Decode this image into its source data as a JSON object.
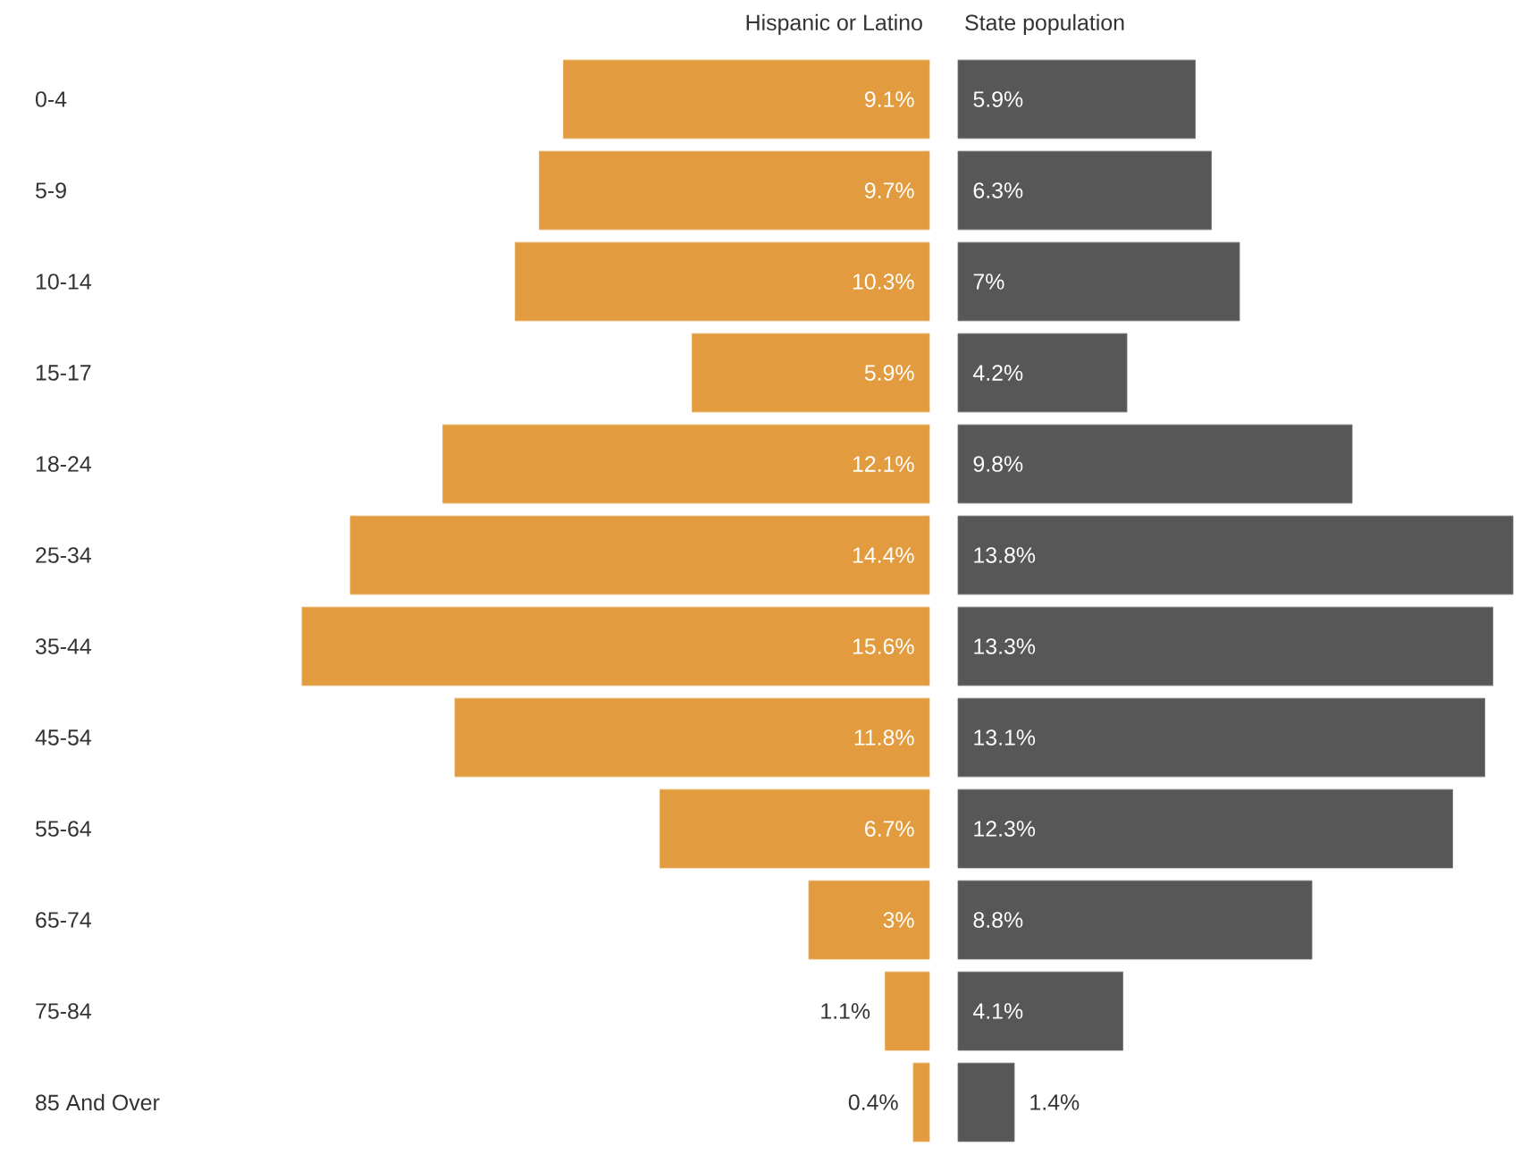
{
  "chart_data": [
    {
      "type": "bar",
      "orientation": "horizontal",
      "title": "Hispanic or Latino",
      "categories": [
        "0-4",
        "5-9",
        "10-14",
        "15-17",
        "18-24",
        "25-34",
        "35-44",
        "45-54",
        "55-64",
        "65-74",
        "75-84",
        "85 And Over"
      ],
      "values": [
        9.1,
        9.7,
        10.3,
        5.9,
        12.1,
        14.4,
        15.6,
        11.8,
        6.7,
        3,
        1.1,
        0.4
      ],
      "color": "#e29c3f",
      "value_labels": [
        "9.1%",
        "9.7%",
        "10.3%",
        "5.9%",
        "12.1%",
        "14.4%",
        "15.6%",
        "11.8%",
        "6.7%",
        "3%",
        "1.1%",
        "0.4%"
      ],
      "tick_labels": "y"
    },
    {
      "type": "bar",
      "orientation": "horizontal",
      "title": "State population",
      "categories": [
        null,
        null,
        null,
        null,
        null,
        null,
        null,
        null,
        null,
        null,
        null,
        null
      ],
      "values": [
        5.9,
        6.3,
        7,
        4.2,
        9.8,
        13.8,
        13.3,
        13.1,
        12.3,
        8.8,
        4.1,
        1.4
      ],
      "color": "#575757",
      "value_labels": [
        "5.9%",
        "6.3%",
        "7%",
        "4.2%",
        "9.8%",
        "13.8%",
        "13.3%",
        "13.1%",
        "12.3%",
        "8.8%",
        "4.1%",
        "1.4%"
      ],
      "tick_labels": false
    }
  ]
}
